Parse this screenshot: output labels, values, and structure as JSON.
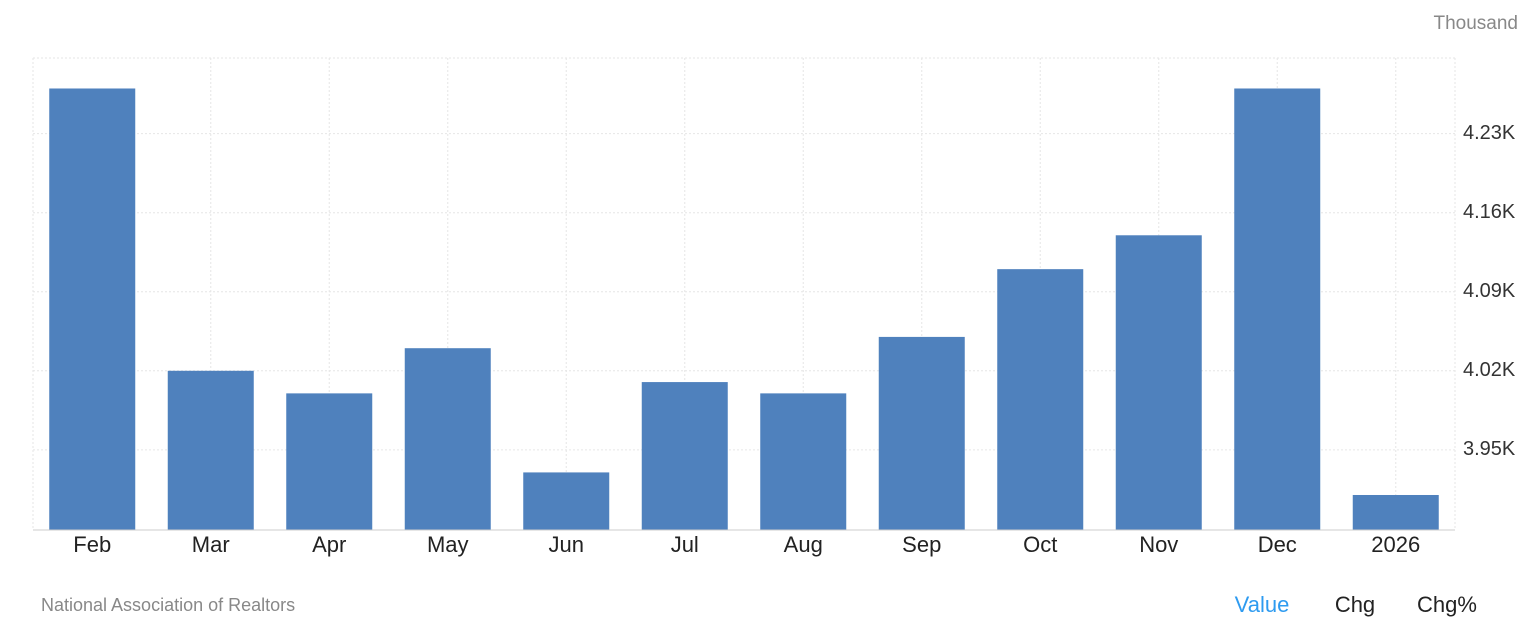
{
  "chart_data": {
    "type": "bar",
    "unit": "Thousand",
    "categories": [
      "Feb",
      "Mar",
      "Apr",
      "May",
      "Jun",
      "Jul",
      "Aug",
      "Sep",
      "Oct",
      "Nov",
      "Dec",
      "2026"
    ],
    "values": [
      4.27,
      4.02,
      4.0,
      4.04,
      3.93,
      4.01,
      4.0,
      4.05,
      4.11,
      4.14,
      4.27,
      3.91
    ],
    "color": "#4f81bd",
    "ylim": [
      3.879,
      4.297
    ],
    "yticks": [
      {
        "value": 3.95,
        "label": "3.95K"
      },
      {
        "value": 4.02,
        "label": "4.02K"
      },
      {
        "value": 4.09,
        "label": "4.09K"
      },
      {
        "value": 4.16,
        "label": "4.16K"
      },
      {
        "value": 4.23,
        "label": "4.23K"
      }
    ],
    "grid": true
  },
  "footer": {
    "source": "National Association of Realtors",
    "buttons": [
      "Value",
      "Chg",
      "Chg%"
    ]
  }
}
